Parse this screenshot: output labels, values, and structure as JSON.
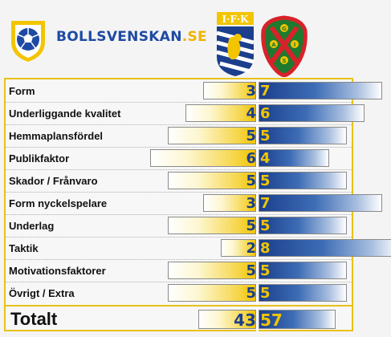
{
  "brand": {
    "part1": "BOLLSVENSKAN",
    "part2": ".SE"
  },
  "crest1": {
    "text": "I·F·K",
    "color": "#1b3f8c",
    "accent": "#f2c500"
  },
  "crest2": {
    "letters": [
      "G",
      "A",
      "I",
      "S"
    ],
    "color": "#1e7a2e",
    "accent": "#d8222a"
  },
  "colors": {
    "home": "#1b3f8c",
    "away": "#f2c500",
    "border": "#e8c11a"
  },
  "rows": [
    {
      "label": "Form",
      "home": "3",
      "away": "7"
    },
    {
      "label": "Underliggande kvalitet",
      "home": "4",
      "away": "6"
    },
    {
      "label": "Hemmaplansfördel",
      "home": "5",
      "away": "5"
    },
    {
      "label": "Publikfaktor",
      "home": "6",
      "away": "4"
    },
    {
      "label": "Skador / Frånvaro",
      "home": "5",
      "away": "5"
    },
    {
      "label": "Form nyckelspelare",
      "home": "3",
      "away": "7"
    },
    {
      "label": "Underlag",
      "home": "5",
      "away": "5"
    },
    {
      "label": "Taktik",
      "home": "2",
      "away": "8"
    },
    {
      "label": "Motivationsfaktorer",
      "home": "5",
      "away": "5"
    },
    {
      "label": "Övrigt / Extra",
      "home": "5",
      "away": "5"
    }
  ],
  "total": {
    "label": "Totalt",
    "home": "43",
    "away": "57"
  }
}
